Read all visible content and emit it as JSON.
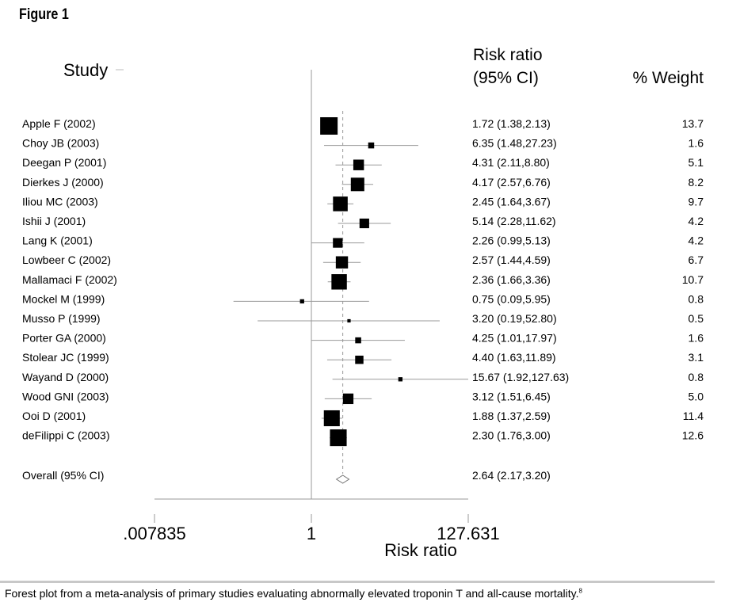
{
  "figure_title": "Figure 1",
  "caption": "Forest plot from a meta-analysis of primary studies evaluating abnormally elevated troponin T and all-cause mortality.",
  "caption_ref": "8",
  "chart_data": {
    "type": "forest",
    "scale": "log",
    "xlim": [
      0.007835,
      127.631
    ],
    "xticks": [
      ".007835",
      "1",
      "127.631"
    ],
    "xlabel": "Risk ratio",
    "null_line": 1,
    "headers": {
      "study": "Study",
      "ci_line1": "Risk ratio",
      "ci_line2": "(95% CI)",
      "weight": "% Weight"
    },
    "studies": [
      {
        "name": "Apple F (2002)",
        "rr": 1.72,
        "lo": 1.38,
        "hi": 2.13,
        "ci_text": "1.72 (1.38,2.13)",
        "weight": "13.7"
      },
      {
        "name": "Choy JB (2003)",
        "rr": 6.35,
        "lo": 1.48,
        "hi": 27.23,
        "ci_text": "6.35 (1.48,27.23)",
        "weight": "1.6"
      },
      {
        "name": "Deegan P (2001)",
        "rr": 4.31,
        "lo": 2.11,
        "hi": 8.8,
        "ci_text": "4.31 (2.11,8.80)",
        "weight": "5.1"
      },
      {
        "name": "Dierkes J (2000)",
        "rr": 4.17,
        "lo": 2.57,
        "hi": 6.76,
        "ci_text": "4.17 (2.57,6.76)",
        "weight": "8.2"
      },
      {
        "name": "Iliou MC (2003)",
        "rr": 2.45,
        "lo": 1.64,
        "hi": 3.67,
        "ci_text": "2.45 (1.64,3.67)",
        "weight": "9.7"
      },
      {
        "name": "Ishii J (2001)",
        "rr": 5.14,
        "lo": 2.28,
        "hi": 11.62,
        "ci_text": "5.14 (2.28,11.62)",
        "weight": "4.2"
      },
      {
        "name": "Lang K (2001)",
        "rr": 2.26,
        "lo": 0.99,
        "hi": 5.13,
        "ci_text": "2.26 (0.99,5.13)",
        "weight": "4.2"
      },
      {
        "name": "Lowbeer C (2002)",
        "rr": 2.57,
        "lo": 1.44,
        "hi": 4.59,
        "ci_text": "2.57 (1.44,4.59)",
        "weight": "6.7"
      },
      {
        "name": "Mallamaci F (2002)",
        "rr": 2.36,
        "lo": 1.66,
        "hi": 3.36,
        "ci_text": "2.36 (1.66,3.36)",
        "weight": "10.7"
      },
      {
        "name": "Mockel M (1999)",
        "rr": 0.75,
        "lo": 0.09,
        "hi": 5.95,
        "ci_text": "0.75 (0.09,5.95)",
        "weight": "0.8"
      },
      {
        "name": "Musso P (1999)",
        "rr": 3.2,
        "lo": 0.19,
        "hi": 52.8,
        "ci_text": "3.20 (0.19,52.80)",
        "weight": "0.5"
      },
      {
        "name": "Porter GA (2000)",
        "rr": 4.25,
        "lo": 1.01,
        "hi": 17.97,
        "ci_text": "4.25 (1.01,17.97)",
        "weight": "1.6"
      },
      {
        "name": "Stolear JC (1999)",
        "rr": 4.4,
        "lo": 1.63,
        "hi": 11.89,
        "ci_text": "4.40 (1.63,11.89)",
        "weight": "3.1"
      },
      {
        "name": "Wayand D (2000)",
        "rr": 15.67,
        "lo": 1.92,
        "hi": 127.63,
        "ci_text": "15.67 (1.92,127.63)",
        "weight": "0.8"
      },
      {
        "name": "Wood GNI (2003)",
        "rr": 3.12,
        "lo": 1.51,
        "hi": 6.45,
        "ci_text": "3.12 (1.51,6.45)",
        "weight": "5.0"
      },
      {
        "name": "Ooi D (2001)",
        "rr": 1.88,
        "lo": 1.37,
        "hi": 2.59,
        "ci_text": "1.88 (1.37,2.59)",
        "weight": "11.4"
      },
      {
        "name": "deFilippi C (2003)",
        "rr": 2.3,
        "lo": 1.76,
        "hi": 3.0,
        "ci_text": "2.30 (1.76,3.00)",
        "weight": "12.6"
      }
    ],
    "overall": {
      "name": "Overall (95% CI)",
      "rr": 2.64,
      "lo": 2.17,
      "hi": 3.2,
      "ci_text": "2.64 (2.17,3.20)"
    }
  }
}
